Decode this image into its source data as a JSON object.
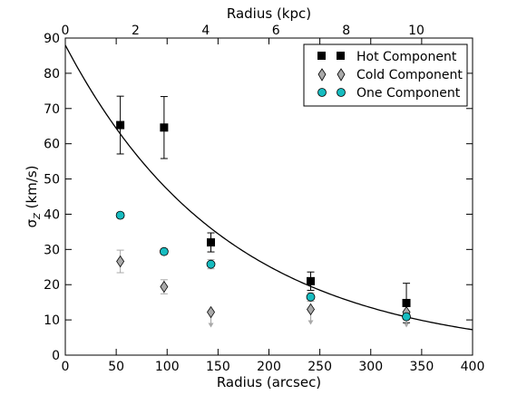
{
  "chart_data": {
    "type": "scatter",
    "xlabel": "Radius (arcsec)",
    "ylabel_main": "σ",
    "ylabel_sub": "Z",
    "ylabel_unit": " (km/s)",
    "top_xlabel": "Radius (kpc)",
    "xlim": [
      0,
      400
    ],
    "ylim": [
      0,
      90
    ],
    "top_xlim": [
      0,
      11.6
    ],
    "xticks": [
      0,
      50,
      100,
      150,
      200,
      250,
      300,
      350,
      400
    ],
    "yticks": [
      0,
      10,
      20,
      30,
      40,
      50,
      60,
      70,
      80,
      90
    ],
    "top_xticks": [
      0,
      2,
      4,
      6,
      8,
      10
    ],
    "grid": false,
    "legend_position": "top-right",
    "series": [
      {
        "name": "Hot Component",
        "marker": "square",
        "color": "#000000",
        "points": [
          {
            "x": 54,
            "y": 65.3,
            "err": 8.2
          },
          {
            "x": 97,
            "y": 64.6,
            "err": 8.8
          },
          {
            "x": 143,
            "y": 32.0,
            "err": 2.7
          },
          {
            "x": 241,
            "y": 21.0,
            "err": 2.6
          },
          {
            "x": 335,
            "y": 14.8,
            "err": 5.6
          }
        ]
      },
      {
        "name": "Cold Component",
        "marker": "diamond",
        "color": "#a9a9a9",
        "points": [
          {
            "x": 54,
            "y": 26.6,
            "err": 3.2
          },
          {
            "x": 97,
            "y": 19.4,
            "err": 2.0
          },
          {
            "x": 143,
            "y": 12.2,
            "err": 0,
            "upper_limit": true
          },
          {
            "x": 241,
            "y": 13.0,
            "err": 0,
            "upper_limit": true
          },
          {
            "x": 335,
            "y": 12.2,
            "err": 0,
            "upper_limit": true
          }
        ]
      },
      {
        "name": "One Component",
        "marker": "circle",
        "color": "#17bcc0",
        "points": [
          {
            "x": 54,
            "y": 39.7,
            "err": 0.8
          },
          {
            "x": 97,
            "y": 29.4,
            "err": 0.8
          },
          {
            "x": 143,
            "y": 25.8,
            "err": 1.3
          },
          {
            "x": 241,
            "y": 16.5,
            "err": 1.2
          },
          {
            "x": 335,
            "y": 10.9,
            "err": 0.8
          }
        ]
      }
    ],
    "model_curve": {
      "type": "exponential",
      "amplitude": 88,
      "scale_length": 160,
      "color": "#000000"
    }
  }
}
